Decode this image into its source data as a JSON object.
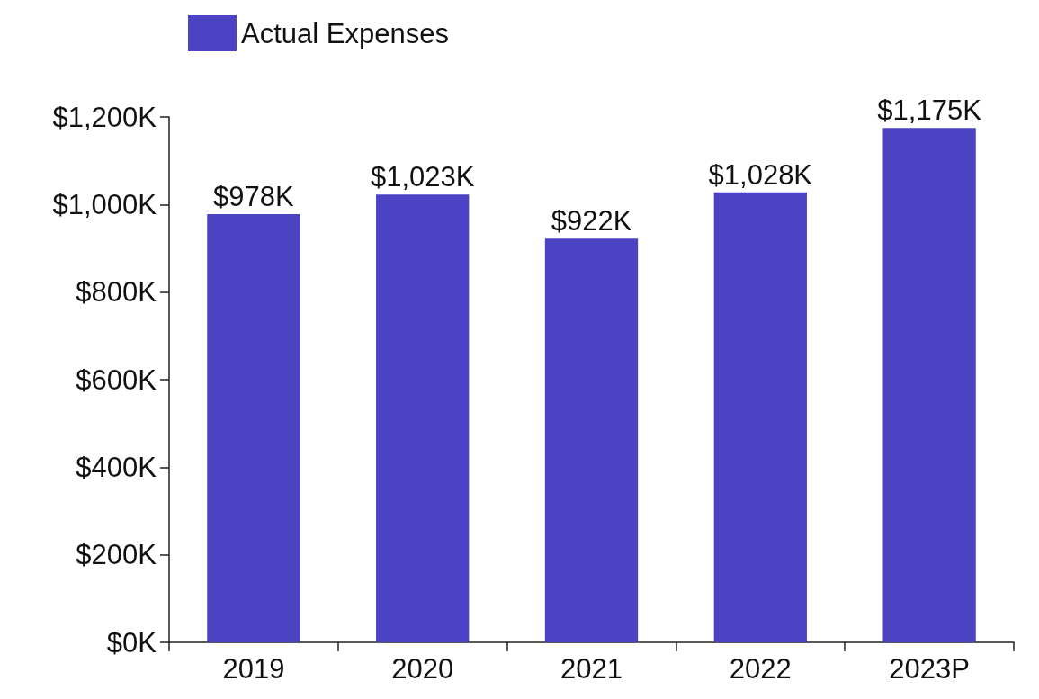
{
  "chart_data": {
    "type": "bar",
    "categories": [
      "2019",
      "2020",
      "2021",
      "2022",
      "2023P"
    ],
    "series": [
      {
        "name": "Actual Expenses",
        "color": "#4b42c4",
        "values": [
          978,
          1023,
          922,
          1028,
          1175
        ],
        "value_labels": [
          "$978K",
          "$1,023K",
          "$922K",
          "$1,028K",
          "$1,175K"
        ]
      }
    ],
    "ylim": [
      0,
      1200
    ],
    "yticks": [
      {
        "value": 0,
        "label": "$0K"
      },
      {
        "value": 200,
        "label": "$200K"
      },
      {
        "value": 400,
        "label": "$400K"
      },
      {
        "value": 600,
        "label": "$600K"
      },
      {
        "value": 800,
        "label": "$800K"
      },
      {
        "value": 1000,
        "label": "$1,000K"
      },
      {
        "value": 1200,
        "label": "$1,200K"
      }
    ],
    "grid": false,
    "legend": "top left"
  }
}
